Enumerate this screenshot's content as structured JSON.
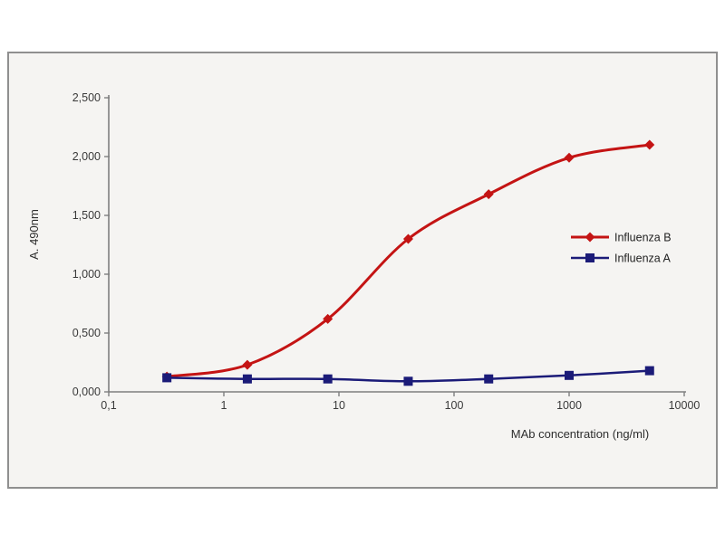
{
  "panel": {
    "background": "#f5f4f2",
    "border_color": "#8f8f8f"
  },
  "chart_data": {
    "type": "line",
    "x_scale": "log",
    "x": [
      0.32,
      1.6,
      8,
      40,
      200,
      1000,
      5000
    ],
    "series": [
      {
        "name": "Influenza B",
        "color": "#c41414",
        "marker": "diamond",
        "line_width": 3,
        "values": [
          0.13,
          0.23,
          0.62,
          1.3,
          1.68,
          1.99,
          2.1
        ]
      },
      {
        "name": "Influenza A",
        "color": "#1b1b78",
        "marker": "square",
        "line_width": 2.5,
        "values": [
          0.12,
          0.11,
          0.11,
          0.09,
          0.11,
          0.14,
          0.18
        ]
      }
    ],
    "title": "",
    "xlabel": "MAb concentration (ng/ml)",
    "ylabel": "A. 490nm",
    "xlim": [
      0.1,
      10000
    ],
    "ylim": [
      0,
      2.5
    ],
    "x_tick_values": [
      0.1,
      1,
      10,
      100,
      1000,
      10000
    ],
    "x_tick_labels": [
      "0,1",
      "1",
      "10",
      "100",
      "1000",
      "10000"
    ],
    "y_tick_values": [
      0,
      0.5,
      1,
      1.5,
      2,
      2.5
    ],
    "y_tick_labels": [
      "0,000",
      "0,500",
      "1,000",
      "1,500",
      "2,000",
      "2,500"
    ],
    "grid": false,
    "legend_position": "right-middle",
    "axis_color": "#7f7f7f",
    "tick_label_color": "#3a3a3a"
  }
}
